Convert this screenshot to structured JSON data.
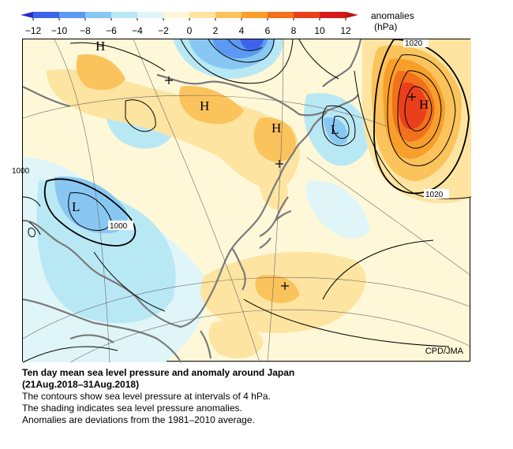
{
  "legend": {
    "title": "anomalies",
    "unit": "(hPa)",
    "ticks": [
      "−12",
      "−10",
      "−8",
      "−6",
      "−4",
      "−2",
      "0",
      "2",
      "4",
      "6",
      "8",
      "10",
      "12"
    ],
    "colors": [
      "#2a2acc",
      "#3c64ea",
      "#5c99f0",
      "#89c7f3",
      "#b9e8f5",
      "#e0f5f8",
      "#fff8d8",
      "#fde4a0",
      "#fbc35c",
      "#f79f2a",
      "#f2711d",
      "#e9401b",
      "#d81818",
      "#c01010"
    ]
  },
  "map": {
    "credit": "CPD/JMA",
    "high_marker": "H",
    "low_marker": "L",
    "isobar_labels": [
      "1020",
      "1020",
      "1000",
      "1000"
    ]
  },
  "caption": {
    "title": "Ten day mean sea level pressure and anomaly around Japan",
    "period": "(21Aug.2018–31Aug.2018)",
    "line1": "The contours show sea level pressure at intervals of 4 hPa.",
    "line2": "The shading indicates sea level pressure anomalies.",
    "line3": "Anomalies are deviations from the 1981–2010 average."
  }
}
